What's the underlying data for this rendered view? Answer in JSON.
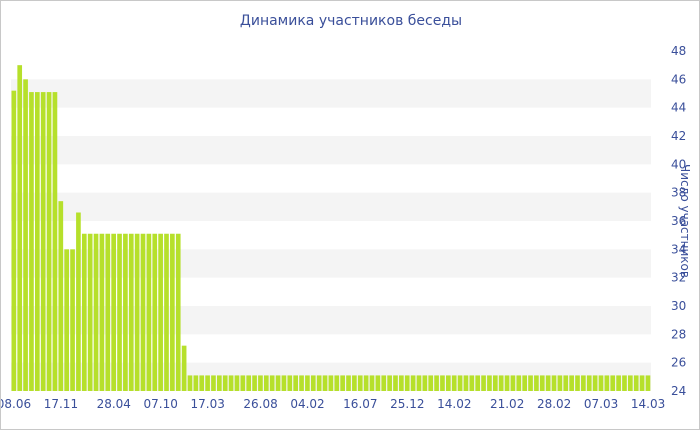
{
  "chart_data": {
    "type": "bar",
    "title": "Динамика участников беседы",
    "xlabel": "",
    "ylabel": "Число участников",
    "ylim": [
      24,
      48
    ],
    "y_ticks": [
      24,
      26,
      28,
      30,
      32,
      34,
      36,
      38,
      40,
      42,
      44,
      46,
      48
    ],
    "y_axis_position": "right",
    "grid": "horizontal alternating bands",
    "bar_color": "#b6e02b",
    "band_color": "#f4f4f4",
    "x_tick_labels": [
      "08.06",
      "17.11",
      "28.04",
      "07.10",
      "17.03",
      "26.08",
      "04.02",
      "16.07",
      "25.12",
      "14.02",
      "21.02",
      "28.02",
      "07.03",
      "14.03"
    ],
    "x_tick_bar_index": [
      0,
      8,
      17,
      25,
      33,
      42,
      50,
      59,
      67,
      75,
      84,
      92,
      100,
      108
    ],
    "values": [
      45.2,
      47.0,
      46.0,
      45.1,
      45.1,
      45.1,
      45.1,
      45.1,
      37.4,
      34.0,
      34.0,
      36.6,
      35.1,
      35.1,
      35.1,
      35.1,
      35.1,
      35.1,
      35.1,
      35.1,
      35.1,
      35.1,
      35.1,
      35.1,
      35.1,
      35.1,
      35.1,
      35.1,
      35.1,
      27.2,
      25.1,
      25.1,
      25.1,
      25.1,
      25.1,
      25.1,
      25.1,
      25.1,
      25.1,
      25.1,
      25.1,
      25.1,
      25.1,
      25.1,
      25.1,
      25.1,
      25.1,
      25.1,
      25.1,
      25.1,
      25.1,
      25.1,
      25.1,
      25.1,
      25.1,
      25.1,
      25.1,
      25.1,
      25.1,
      25.1,
      25.1,
      25.1,
      25.1,
      25.1,
      25.1,
      25.1,
      25.1,
      25.1,
      25.1,
      25.1,
      25.1,
      25.1,
      25.1,
      25.1,
      25.1,
      25.1,
      25.1,
      25.1,
      25.1,
      25.1,
      25.1,
      25.1,
      25.1,
      25.1,
      25.1,
      25.1,
      25.1,
      25.1,
      25.1,
      25.1,
      25.1,
      25.1,
      25.1,
      25.1,
      25.1,
      25.1,
      25.1,
      25.1,
      25.1,
      25.1,
      25.1,
      25.1,
      25.1,
      25.1,
      25.1,
      25.1,
      25.1,
      25.1,
      25.1
    ]
  }
}
